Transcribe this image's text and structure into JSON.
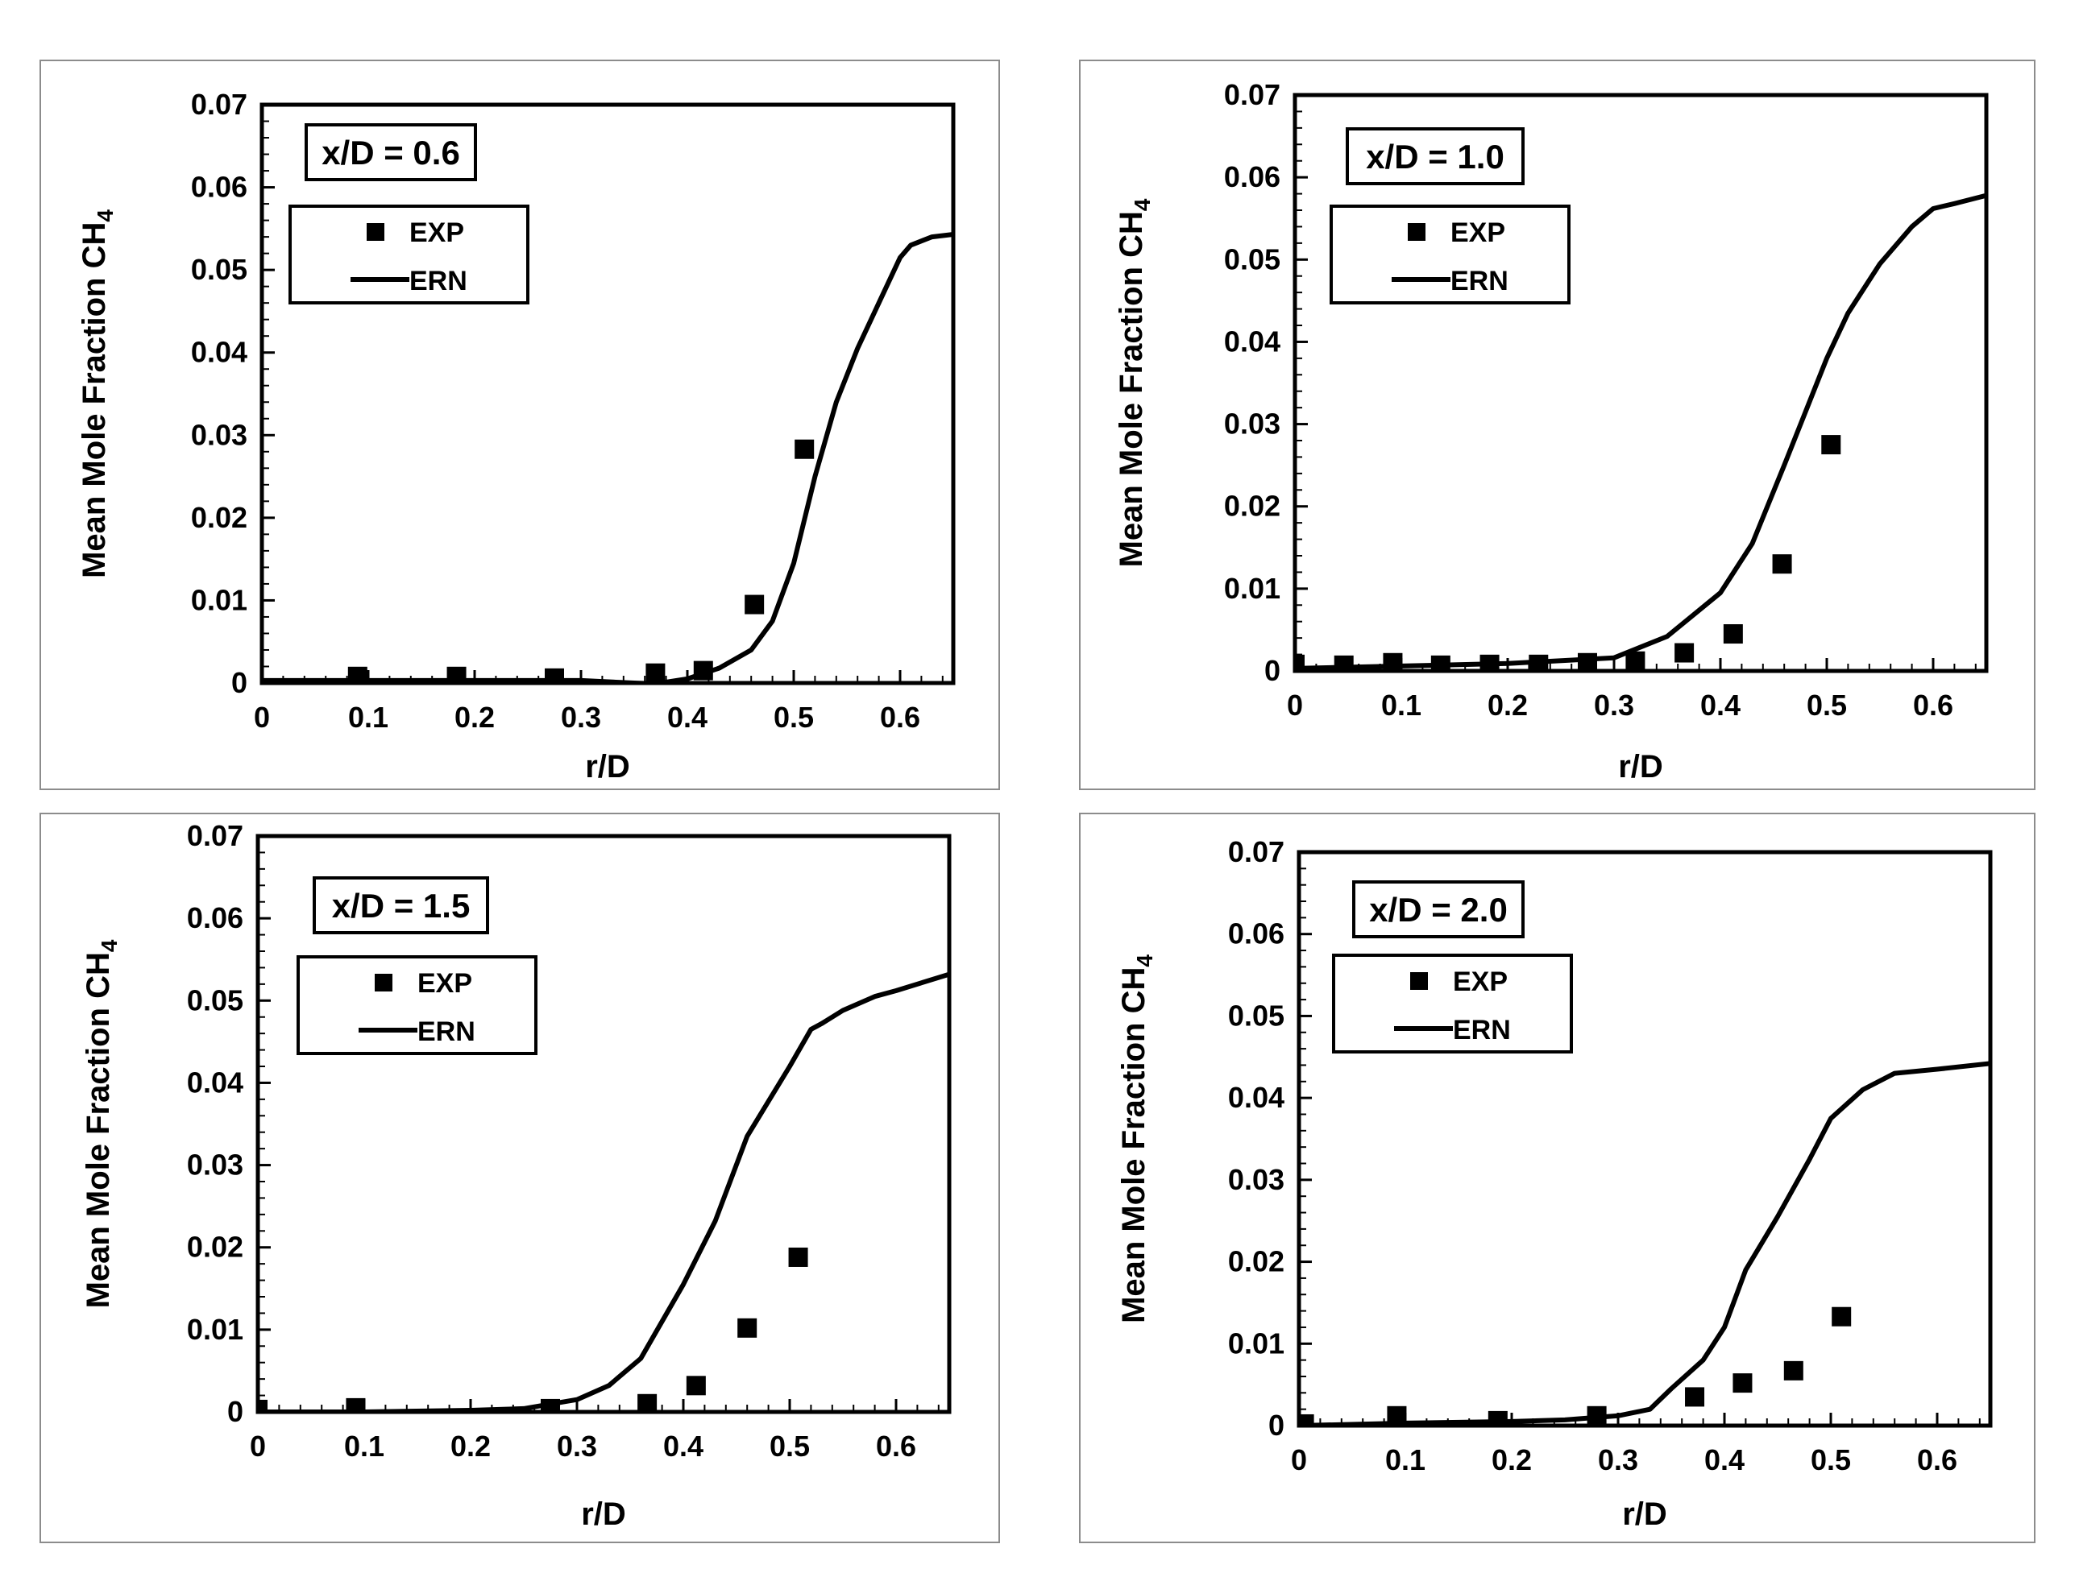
{
  "figure": {
    "x_label": "r/D",
    "y_label_main": "Mean Mole Fraction CH",
    "y_label_sub": "4",
    "legend_labels": [
      "EXP",
      "ERN"
    ]
  },
  "chart_data": [
    {
      "type": "scatter+line",
      "title": "x/D = 0.6",
      "xlabel": "r/D",
      "ylabel": "Mean Mole Fraction CH4",
      "xlim": [
        0,
        0.65
      ],
      "ylim": [
        0,
        0.07
      ],
      "x_ticks": [
        0,
        0.1,
        0.2,
        0.3,
        0.4,
        0.5,
        0.6
      ],
      "x_tick_labels": [
        "0",
        "0.1",
        "0.2",
        "0.3",
        "0.4",
        "0.5",
        "0.6"
      ],
      "y_ticks": [
        0,
        0.01,
        0.02,
        0.03,
        0.04,
        0.05,
        0.06,
        0.07
      ],
      "y_tick_labels": [
        "0",
        "0.01",
        "0.02",
        "0.03",
        "0.04",
        "0.05",
        "0.06",
        "0.07"
      ],
      "legend": [
        "EXP",
        "ERN"
      ],
      "series": [
        {
          "name": "EXP",
          "kind": "scatter",
          "x": [
            0.09,
            0.183,
            0.275,
            0.37,
            0.415,
            0.463,
            0.51
          ],
          "y": [
            0.0008,
            0.0008,
            0.0006,
            0.0012,
            0.0015,
            0.0095,
            0.0283
          ]
        },
        {
          "name": "ERN",
          "kind": "line",
          "x": [
            0,
            0.1,
            0.2,
            0.3,
            0.35,
            0.37,
            0.4,
            0.43,
            0.46,
            0.48,
            0.5,
            0.52,
            0.54,
            0.56,
            0.58,
            0.6,
            0.61,
            0.63,
            0.65
          ],
          "y": [
            0.0003,
            0.0003,
            0.0003,
            0.0003,
            0.0,
            -0.0001,
            0.0005,
            0.0018,
            0.004,
            0.0075,
            0.0145,
            0.025,
            0.034,
            0.0405,
            0.046,
            0.0515,
            0.053,
            0.054,
            0.0543
          ]
        }
      ]
    },
    {
      "type": "scatter+line",
      "title": "x/D = 1.0",
      "xlabel": "r/D",
      "ylabel": "Mean Mole Fraction CH4",
      "xlim": [
        0,
        0.65
      ],
      "ylim": [
        0,
        0.07
      ],
      "x_ticks": [
        0,
        0.1,
        0.2,
        0.3,
        0.4,
        0.5,
        0.6
      ],
      "x_tick_labels": [
        "0",
        "0.1",
        "0.2",
        "0.3",
        "0.4",
        "0.5",
        "0.6"
      ],
      "y_ticks": [
        0,
        0.01,
        0.02,
        0.03,
        0.04,
        0.05,
        0.06,
        0.07
      ],
      "y_tick_labels": [
        "0",
        "0.01",
        "0.02",
        "0.03",
        "0.04",
        "0.05",
        "0.06",
        "0.07"
      ],
      "legend": [
        "EXP",
        "ERN"
      ],
      "series": [
        {
          "name": "EXP",
          "kind": "scatter",
          "x": [
            0,
            0.046,
            0.092,
            0.137,
            0.183,
            0.229,
            0.275,
            0.32,
            0.366,
            0.412,
            0.458,
            0.504
          ],
          "y": [
            0.0008,
            0.0007,
            0.001,
            0.0007,
            0.0008,
            0.0008,
            0.001,
            0.0012,
            0.0022,
            0.0045,
            0.013,
            0.0275
          ]
        },
        {
          "name": "ERN",
          "kind": "line",
          "x": [
            0,
            0.1,
            0.2,
            0.3,
            0.35,
            0.4,
            0.43,
            0.46,
            0.48,
            0.5,
            0.52,
            0.55,
            0.58,
            0.6,
            0.62,
            0.65
          ],
          "y": [
            0.0003,
            0.0006,
            0.0009,
            0.0016,
            0.0042,
            0.0095,
            0.0155,
            0.025,
            0.0315,
            0.038,
            0.0435,
            0.0495,
            0.054,
            0.0562,
            0.0568,
            0.0578
          ]
        }
      ]
    },
    {
      "type": "scatter+line",
      "title": "x/D = 1.5",
      "xlabel": "r/D",
      "ylabel": "Mean Mole Fraction CH4",
      "xlim": [
        0,
        0.65
      ],
      "ylim": [
        0,
        0.07
      ],
      "x_ticks": [
        0,
        0.1,
        0.2,
        0.3,
        0.4,
        0.5,
        0.6
      ],
      "x_tick_labels": [
        "0",
        "0.1",
        "0.2",
        "0.3",
        "0.4",
        "0.5",
        "0.6"
      ],
      "y_ticks": [
        0,
        0.01,
        0.02,
        0.03,
        0.04,
        0.05,
        0.06,
        0.07
      ],
      "y_tick_labels": [
        "0",
        "0.01",
        "0.02",
        "0.03",
        "0.04",
        "0.05",
        "0.06",
        "0.07"
      ],
      "legend": [
        "EXP",
        "ERN"
      ],
      "series": [
        {
          "name": "EXP",
          "kind": "scatter",
          "x": [
            0,
            0.092,
            0.275,
            0.366,
            0.412,
            0.46,
            0.508
          ],
          "y": [
            0.0003,
            0.0005,
            0.0004,
            0.001,
            0.0032,
            0.0102,
            0.0188
          ]
        },
        {
          "name": "ERN",
          "kind": "line",
          "x": [
            0,
            0.1,
            0.2,
            0.25,
            0.3,
            0.33,
            0.36,
            0.4,
            0.43,
            0.46,
            0.5,
            0.52,
            0.53,
            0.55,
            0.58,
            0.6,
            0.65
          ],
          "y": [
            0.0,
            0.0,
            0.0002,
            0.0004,
            0.0015,
            0.0032,
            0.0065,
            0.0155,
            0.0232,
            0.0335,
            0.042,
            0.0465,
            0.0472,
            0.0488,
            0.0505,
            0.0512,
            0.0532
          ]
        }
      ]
    },
    {
      "type": "scatter+line",
      "title": "x/D = 2.0",
      "xlabel": "r/D",
      "ylabel": "Mean Mole Fraction CH4",
      "xlim": [
        0,
        0.65
      ],
      "ylim": [
        0,
        0.07
      ],
      "x_ticks": [
        0,
        0.1,
        0.2,
        0.3,
        0.4,
        0.5,
        0.6
      ],
      "x_tick_labels": [
        "0",
        "0.1",
        "0.2",
        "0.3",
        "0.4",
        "0.5",
        "0.6"
      ],
      "y_ticks": [
        0,
        0.01,
        0.02,
        0.03,
        0.04,
        0.05,
        0.06,
        0.07
      ],
      "y_tick_labels": [
        "0",
        "0.01",
        "0.02",
        "0.03",
        "0.04",
        "0.05",
        "0.06",
        "0.07"
      ],
      "legend": [
        "EXP",
        "ERN"
      ],
      "series": [
        {
          "name": "EXP",
          "kind": "scatter",
          "x": [
            0.005,
            0.092,
            0.187,
            0.28,
            0.372,
            0.417,
            0.465,
            0.51
          ],
          "y": [
            0.0002,
            0.0012,
            0.0006,
            0.0012,
            0.0035,
            0.0052,
            0.0067,
            0.0133
          ]
        },
        {
          "name": "ERN",
          "kind": "line",
          "x": [
            0,
            0.1,
            0.2,
            0.25,
            0.3,
            0.33,
            0.35,
            0.38,
            0.4,
            0.42,
            0.45,
            0.48,
            0.5,
            0.53,
            0.56,
            0.6,
            0.65
          ],
          "y": [
            0.0,
            0.0003,
            0.0005,
            0.0007,
            0.0012,
            0.002,
            0.0045,
            0.008,
            0.012,
            0.019,
            0.0255,
            0.0325,
            0.0375,
            0.041,
            0.043,
            0.0435,
            0.0442
          ]
        }
      ]
    }
  ]
}
